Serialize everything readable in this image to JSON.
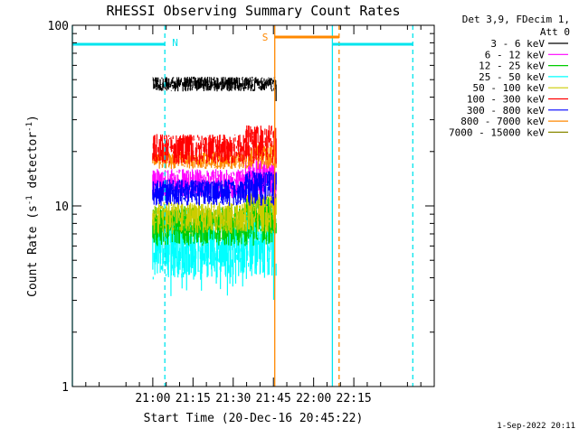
{
  "chart_data": {
    "type": "line",
    "title": "RHESSI Observing Summary Count Rates",
    "xlabel": "Start Time (20-Dec-16 20:45:22)",
    "ylabel_main": "Count Rate (s",
    "ylabel_sup1": "-1",
    "ylabel_mid": " detector",
    "ylabel_sup2": "-1",
    "ylabel_end": ")",
    "yscale": "log",
    "ylim": [
      1,
      100
    ],
    "xlim_minutes": [
      -15,
      120
    ],
    "x_ticks": [
      {
        "minute": 15,
        "label": "21:00"
      },
      {
        "minute": 30,
        "label": "21:15"
      },
      {
        "minute": 45,
        "label": "21:30"
      },
      {
        "minute": 60,
        "label": "21:45"
      },
      {
        "minute": 75,
        "label": "22:00"
      },
      {
        "minute": 90,
        "label": "22:15"
      }
    ],
    "y_ticks": [
      {
        "value": 1,
        "label": "1"
      },
      {
        "value": 10,
        "label": "10"
      },
      {
        "value": 100,
        "label": "100"
      }
    ],
    "legend_title": [
      "Det 3,9, FDecim 1,",
      "Att 0"
    ],
    "legend_position": "right",
    "data_range_minutes": [
      15,
      61
    ],
    "series": [
      {
        "name": "3 - 6 keV",
        "color": "#000000",
        "level": 47,
        "low": 43,
        "high": 52,
        "min_clip": 38
      },
      {
        "name": "6 - 12 keV",
        "color": "#ff00ff",
        "level": 14,
        "low": 11,
        "high": 16
      },
      {
        "name": "12 - 25 keV",
        "color": "#00cc00",
        "level": 8.5,
        "low": 6,
        "high": 10
      },
      {
        "name": "25 - 50 keV",
        "color": "#00ffff",
        "level": 6.5,
        "low": 4,
        "high": 8.5,
        "dips_to": 3
      },
      {
        "name": "50 - 100 keV",
        "color": "#cccc00",
        "level": 9,
        "low": 7,
        "high": 10.5
      },
      {
        "name": "100 - 300 keV",
        "color": "#ff0000",
        "level": 20,
        "low": 17,
        "high": 25
      },
      {
        "name": "300 - 800 keV",
        "color": "#0000ff",
        "level": 12,
        "low": 10,
        "high": 14
      },
      {
        "name": "800 - 7000 keV",
        "color": "#ff8800",
        "level": 18,
        "low": 16,
        "high": 20
      },
      {
        "name": "7000 - 15000 keV",
        "color": "#888800",
        "level": null
      }
    ],
    "night_segments": [
      {
        "start": -15,
        "end": 19.5,
        "label": "N",
        "color": "#00e5ee"
      },
      {
        "start": 82,
        "end": 112,
        "label": "",
        "color": "#00e5ee"
      }
    ],
    "saa_segments": [
      {
        "start": 60.5,
        "end": 84.5,
        "label": "S",
        "color": "#ff8800"
      }
    ],
    "vlines": [
      {
        "minute": -15,
        "color": "#00e5ee",
        "style": "solid"
      },
      {
        "minute": 19.5,
        "color": "#00e5ee",
        "style": "dashed"
      },
      {
        "minute": 60.5,
        "color": "#ff8800",
        "style": "solid"
      },
      {
        "minute": 82,
        "color": "#00e5ee",
        "style": "solid"
      },
      {
        "minute": 84.5,
        "color": "#ff8800",
        "style": "dashed"
      },
      {
        "minute": 112,
        "color": "#00e5ee",
        "style": "dashed"
      }
    ],
    "timestamp": "1-Sep-2022 20:11"
  }
}
